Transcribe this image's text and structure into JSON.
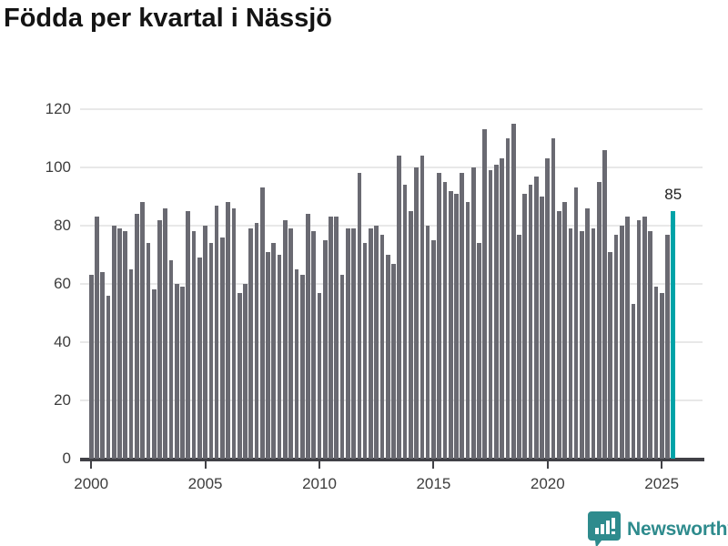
{
  "title": "Födda per kvartal i Nässjö",
  "annotation": {
    "label": "85"
  },
  "branding": {
    "name": "Newsworthy",
    "icon": "newsworthy-chart-bubble-icon"
  },
  "colors": {
    "bar": "#6a6a72",
    "highlight": "#00a3a8",
    "logo_teal": "#2e8b8d",
    "axis": "#414146",
    "label": "#3d3d3d",
    "gridline": "#e8e8e8"
  },
  "chart_data": {
    "type": "bar",
    "title": "Födda per kvartal i Nässjö",
    "xlabel": "",
    "ylabel": "",
    "ylim": [
      0,
      120
    ],
    "grid": "horizontal",
    "y_ticks": [
      0,
      20,
      40,
      60,
      80,
      100,
      120
    ],
    "x_tick_labels": [
      "2000",
      "2005",
      "2010",
      "2015",
      "2020",
      "2025"
    ],
    "frequency": "quarterly",
    "x_start": "2000Q1",
    "x_end": "2025Q3",
    "series": [
      {
        "name": "Födda per kvartal",
        "values": [
          63,
          83,
          64,
          56,
          80,
          79,
          78,
          65,
          84,
          88,
          74,
          58,
          82,
          86,
          68,
          60,
          59,
          85,
          78,
          69,
          80,
          74,
          87,
          76,
          88,
          86,
          57,
          60,
          79,
          81,
          93,
          71,
          74,
          70,
          82,
          79,
          65,
          63,
          84,
          78,
          57,
          75,
          83,
          83,
          63,
          79,
          79,
          98,
          74,
          79,
          80,
          77,
          70,
          67,
          104,
          94,
          85,
          100,
          104,
          80,
          75,
          98,
          95,
          92,
          91,
          98,
          88,
          100,
          74,
          113,
          99,
          101,
          103,
          110,
          115,
          77,
          91,
          94,
          97,
          90,
          103,
          110,
          85,
          88,
          79,
          93,
          78,
          86,
          79,
          95,
          106,
          71,
          77,
          80,
          83,
          53,
          82,
          83,
          78,
          59,
          57,
          77,
          85
        ]
      }
    ],
    "highlight": {
      "index": 102,
      "quarter": "2025Q3",
      "value": 85,
      "label": "85"
    }
  }
}
